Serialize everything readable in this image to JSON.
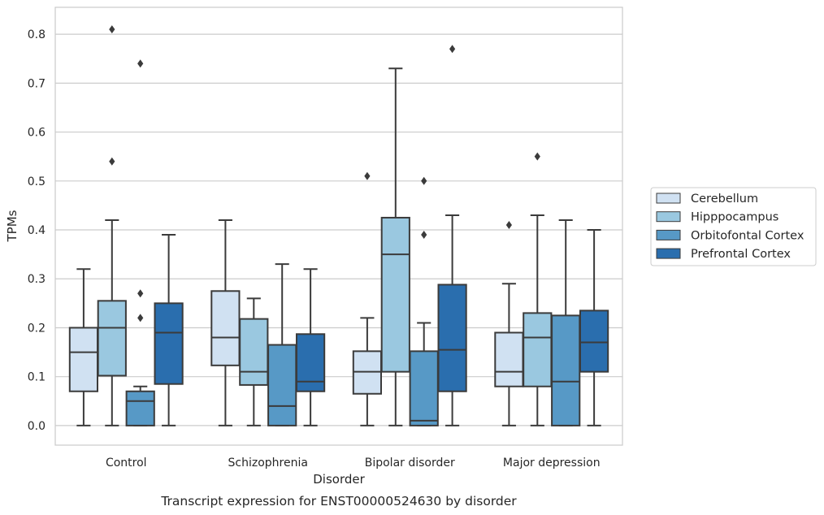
{
  "chart_data": {
    "type": "box",
    "caption": "Transcript expression for ENST00000524630 by disorder",
    "xlabel": "Disorder",
    "ylabel": "TPMs",
    "ylim": [
      -0.04,
      0.855
    ],
    "yticks": [
      0.0,
      0.1,
      0.2,
      0.3,
      0.4,
      0.5,
      0.6,
      0.7,
      0.8
    ],
    "ytick_labels": [
      "0.0",
      "0.1",
      "0.2",
      "0.3",
      "0.4",
      "0.5",
      "0.6",
      "0.7",
      "0.8"
    ],
    "grid": "horizontal",
    "legend_position": "right",
    "categories": [
      "Control",
      "Schizophrenia",
      "Bipolar disorder",
      "Major depression"
    ],
    "series": [
      {
        "name": "Cerebellum",
        "color": "#d0e1f2",
        "boxes": [
          {
            "whisker_low": 0.0,
            "q1": 0.07,
            "median": 0.15,
            "q3": 0.2,
            "whisker_high": 0.32,
            "outliers": []
          },
          {
            "whisker_low": 0.0,
            "q1": 0.123,
            "median": 0.18,
            "q3": 0.275,
            "whisker_high": 0.42,
            "outliers": []
          },
          {
            "whisker_low": 0.0,
            "q1": 0.065,
            "median": 0.11,
            "q3": 0.152,
            "whisker_high": 0.22,
            "outliers": [
              0.51
            ]
          },
          {
            "whisker_low": 0.0,
            "q1": 0.08,
            "median": 0.11,
            "q3": 0.19,
            "whisker_high": 0.29,
            "outliers": [
              0.41
            ]
          }
        ]
      },
      {
        "name": "Hipppocampus",
        "color": "#9ac8e0",
        "boxes": [
          {
            "whisker_low": 0.0,
            "q1": 0.102,
            "median": 0.2,
            "q3": 0.255,
            "whisker_high": 0.42,
            "outliers": [
              0.54,
              0.81
            ]
          },
          {
            "whisker_low": 0.0,
            "q1": 0.083,
            "median": 0.11,
            "q3": 0.218,
            "whisker_high": 0.26,
            "outliers": []
          },
          {
            "whisker_low": 0.0,
            "q1": 0.11,
            "median": 0.35,
            "q3": 0.425,
            "whisker_high": 0.73,
            "outliers": []
          },
          {
            "whisker_low": 0.0,
            "q1": 0.08,
            "median": 0.18,
            "q3": 0.23,
            "whisker_high": 0.43,
            "outliers": [
              0.55
            ]
          }
        ]
      },
      {
        "name": "Orbitofontal Cortex",
        "color": "#5799c6",
        "boxes": [
          {
            "whisker_low": 0.0,
            "q1": 0.0,
            "median": 0.05,
            "q3": 0.07,
            "whisker_high": 0.08,
            "outliers": [
              0.22,
              0.27,
              0.74
            ]
          },
          {
            "whisker_low": 0.0,
            "q1": 0.0,
            "median": 0.04,
            "q3": 0.165,
            "whisker_high": 0.33,
            "outliers": []
          },
          {
            "whisker_low": 0.0,
            "q1": 0.0,
            "median": 0.01,
            "q3": 0.152,
            "whisker_high": 0.21,
            "outliers": [
              0.39,
              0.5
            ]
          },
          {
            "whisker_low": 0.0,
            "q1": 0.0,
            "median": 0.09,
            "q3": 0.225,
            "whisker_high": 0.42,
            "outliers": []
          }
        ]
      },
      {
        "name": "Prefrontal Cortex",
        "color": "#2a6eae",
        "boxes": [
          {
            "whisker_low": 0.0,
            "q1": 0.085,
            "median": 0.19,
            "q3": 0.25,
            "whisker_high": 0.39,
            "outliers": []
          },
          {
            "whisker_low": 0.0,
            "q1": 0.07,
            "median": 0.09,
            "q3": 0.187,
            "whisker_high": 0.32,
            "outliers": []
          },
          {
            "whisker_low": 0.0,
            "q1": 0.07,
            "median": 0.155,
            "q3": 0.288,
            "whisker_high": 0.43,
            "outliers": [
              0.77
            ]
          },
          {
            "whisker_low": 0.0,
            "q1": 0.11,
            "median": 0.17,
            "q3": 0.235,
            "whisker_high": 0.4,
            "outliers": []
          }
        ]
      }
    ]
  }
}
